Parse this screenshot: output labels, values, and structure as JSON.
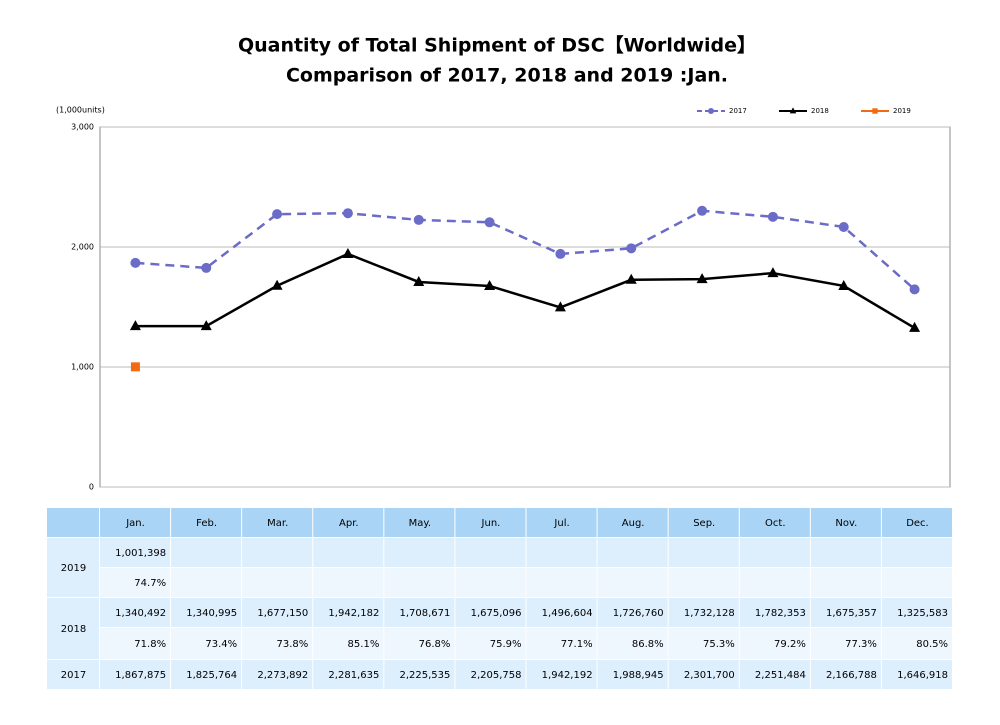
{
  "chart_data": {
    "type": "line",
    "title": [
      "Quantity of Total Shipment of DSC【Worldwide】",
      "Comparison of 2017, 2018 and 2019 :Jan."
    ],
    "y_label": "(1,000units)",
    "categories": [
      "Jan.",
      "Feb.",
      "Mar.",
      "Apr.",
      "May.",
      "Jun.",
      "Jul.",
      "Aug.",
      "Sep.",
      "Oct.",
      "Nov.",
      "Dec."
    ],
    "series": [
      {
        "name": "2017",
        "color": "#6b6bc8",
        "dashed": true,
        "marker": "circle",
        "values": [
          1867.875,
          1825.764,
          2273.892,
          2281.635,
          2225.535,
          2205.758,
          1942.192,
          1988.945,
          2301.7,
          2251.484,
          2166.788,
          1646.918
        ],
        "value_labels": [
          "1,867,875",
          "1,825,764",
          "2,273,892",
          "2,281,635",
          "2,225,535",
          "2,205,758",
          "1,942,192",
          "1,988,945",
          "2,301,700",
          "2,251,484",
          "2,166,788",
          "1,646,918"
        ]
      },
      {
        "name": "2018",
        "color": "#000000",
        "dashed": false,
        "marker": "triangle",
        "values": [
          1340.492,
          1340.995,
          1677.15,
          1942.182,
          1708.671,
          1675.096,
          1496.604,
          1726.76,
          1732.128,
          1782.353,
          1675.357,
          1325.583
        ],
        "value_labels": [
          "1,340,492",
          "1,340,995",
          "1,677,150",
          "1,942,182",
          "1,708,671",
          "1,675,096",
          "1,496,604",
          "1,726,760",
          "1,732,128",
          "1,782,353",
          "1,675,357",
          "1,325,583"
        ]
      },
      {
        "name": "2019",
        "color": "#f26b12",
        "dashed": false,
        "marker": "square",
        "values": [
          1001.398,
          null,
          null,
          null,
          null,
          null,
          null,
          null,
          null,
          null,
          null,
          null
        ],
        "value_labels": [
          "1,001,398",
          null,
          null,
          null,
          null,
          null,
          null,
          null,
          null,
          null,
          null,
          null
        ]
      }
    ],
    "ylim": [
      0,
      3000
    ],
    "yticks": [
      0,
      {
        "value": 1000,
        "label": "1,000"
      },
      {
        "value": 2000,
        "label": "2,000"
      },
      {
        "value": 3000,
        "label": "3,000"
      }
    ],
    "grid": true,
    "legend": "top-right"
  },
  "table": {
    "ratios": [
      [
        "74.7%",
        null,
        null,
        null,
        null,
        null,
        null,
        null,
        null,
        null,
        null,
        null
      ],
      [
        "71.8%",
        "73.4%",
        "73.8%",
        "85.1%",
        "76.8%",
        "75.9%",
        "77.1%",
        "86.8%",
        "75.3%",
        "79.2%",
        "77.3%",
        "80.5%"
      ]
    ]
  }
}
